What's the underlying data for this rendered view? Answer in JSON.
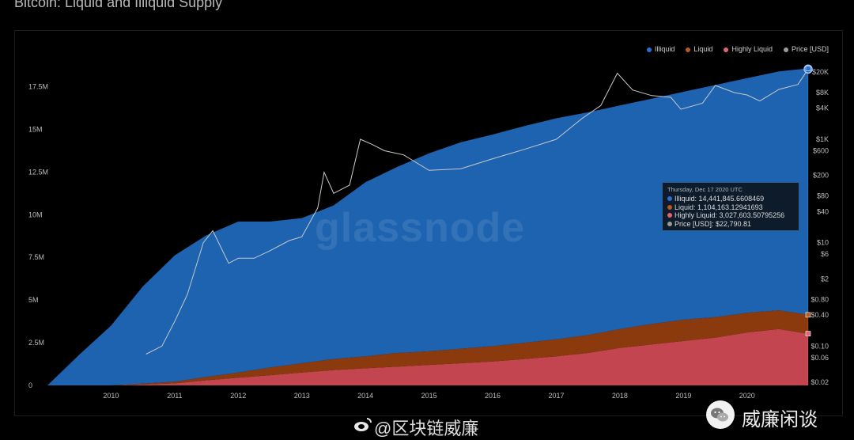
{
  "title": "Bitcoin: Liquid and Illiquid Supply",
  "watermark": "glassnode",
  "footer": {
    "weibo_handle": "@区块链威廉",
    "wechat_name": "威廉闲谈"
  },
  "colors": {
    "illiquid": "#1d63b0",
    "liquid": "#8a3a0d",
    "highly_liquid": "#c2454f",
    "price": "#c9c9c9"
  },
  "legend": [
    {
      "label": "Illiquid",
      "color": "#2a6fd0"
    },
    {
      "label": "Liquid",
      "color": "#b45a22"
    },
    {
      "label": "Highly Liquid",
      "color": "#e06470"
    },
    {
      "label": "Price [USD]",
      "color": "#9a9a9a"
    }
  ],
  "tooltip": {
    "header": "Thursday, Dec 17 2020 UTC",
    "rows": [
      {
        "text": "Illiquid: 14,441,845.6608469",
        "color": "#2a6fd0"
      },
      {
        "text": "Liquid: 1,104,163.12941693",
        "color": "#b45a22"
      },
      {
        "text": "Highly Liquid: 3,027,603.50795256",
        "color": "#e06470"
      },
      {
        "text": "Price [USD]: $22,790.81",
        "color": "#9a9a9a"
      }
    ]
  },
  "chart_data": {
    "type": "area",
    "stacked": true,
    "x_ticks": [
      "2010",
      "2011",
      "2012",
      "2013",
      "2014",
      "2015",
      "2016",
      "2017",
      "2018",
      "2019",
      "2020"
    ],
    "y_left_ticks": [
      "0",
      "2.5M",
      "5M",
      "7.5M",
      "10M",
      "12.5M",
      "15M",
      "17.5M"
    ],
    "y_left_range": [
      0,
      18500000
    ],
    "y_right_ticks": [
      "$0.02",
      "$0.06",
      "$0.10",
      "$0.40",
      "$0.80",
      "$2",
      "$6",
      "$10",
      "$40",
      "$80",
      "$200",
      "$600",
      "$1K",
      "$4K",
      "$8K",
      "$20K"
    ],
    "y_right_scale": "log",
    "x": [
      2009.0,
      2009.5,
      2010.0,
      2010.5,
      2011.0,
      2011.5,
      2012.0,
      2012.5,
      2013.0,
      2013.5,
      2014.0,
      2014.5,
      2015.0,
      2015.5,
      2016.0,
      2016.5,
      2017.0,
      2017.5,
      2018.0,
      2018.5,
      2019.0,
      2019.5,
      2020.0,
      2020.5,
      2020.96
    ],
    "series": [
      {
        "name": "Highly Liquid",
        "values": [
          0,
          0,
          0,
          50000,
          120000,
          300000,
          450000,
          600000,
          750000,
          900000,
          1000000,
          1100000,
          1200000,
          1300000,
          1400000,
          1550000,
          1700000,
          1900000,
          2200000,
          2400000,
          2600000,
          2800000,
          3100000,
          3300000,
          3030000
        ]
      },
      {
        "name": "Liquid",
        "values": [
          0,
          0,
          0,
          50000,
          100000,
          200000,
          300000,
          450000,
          550000,
          650000,
          700000,
          800000,
          800000,
          850000,
          900000,
          950000,
          1000000,
          1050000,
          1100000,
          1200000,
          1250000,
          1200000,
          1150000,
          1100000,
          1104000
        ]
      },
      {
        "name": "Illiquid",
        "values": [
          0,
          1800000,
          3500000,
          5700000,
          7400000,
          8300000,
          8850000,
          8550000,
          8500000,
          9000000,
          10200000,
          10900000,
          11600000,
          12100000,
          12400000,
          12700000,
          12950000,
          13050000,
          13100000,
          13200000,
          13350000,
          13600000,
          13750000,
          14000000,
          14442000
        ]
      }
    ],
    "price": {
      "x": [
        2010.55,
        2010.8,
        2011.0,
        2011.2,
        2011.45,
        2011.6,
        2011.85,
        2012.0,
        2012.25,
        2012.5,
        2012.8,
        2013.0,
        2013.25,
        2013.35,
        2013.5,
        2013.75,
        2013.92,
        2014.1,
        2014.3,
        2014.6,
        2015.0,
        2015.5,
        2016.0,
        2016.5,
        2017.0,
        2017.4,
        2017.7,
        2017.96,
        2018.2,
        2018.5,
        2018.8,
        2018.96,
        2019.3,
        2019.5,
        2019.8,
        2020.0,
        2020.2,
        2020.5,
        2020.8,
        2020.96
      ],
      "values": [
        0.07,
        0.1,
        0.3,
        1,
        10,
        17,
        4,
        5,
        5,
        7,
        11,
        13,
        47,
        230,
        90,
        130,
        1000,
        800,
        600,
        500,
        250,
        270,
        420,
        640,
        1000,
        2500,
        4500,
        19000,
        9000,
        7000,
        6500,
        3800,
        5000,
        11000,
        8000,
        7200,
        5500,
        9200,
        11500,
        22790
      ]
    }
  }
}
